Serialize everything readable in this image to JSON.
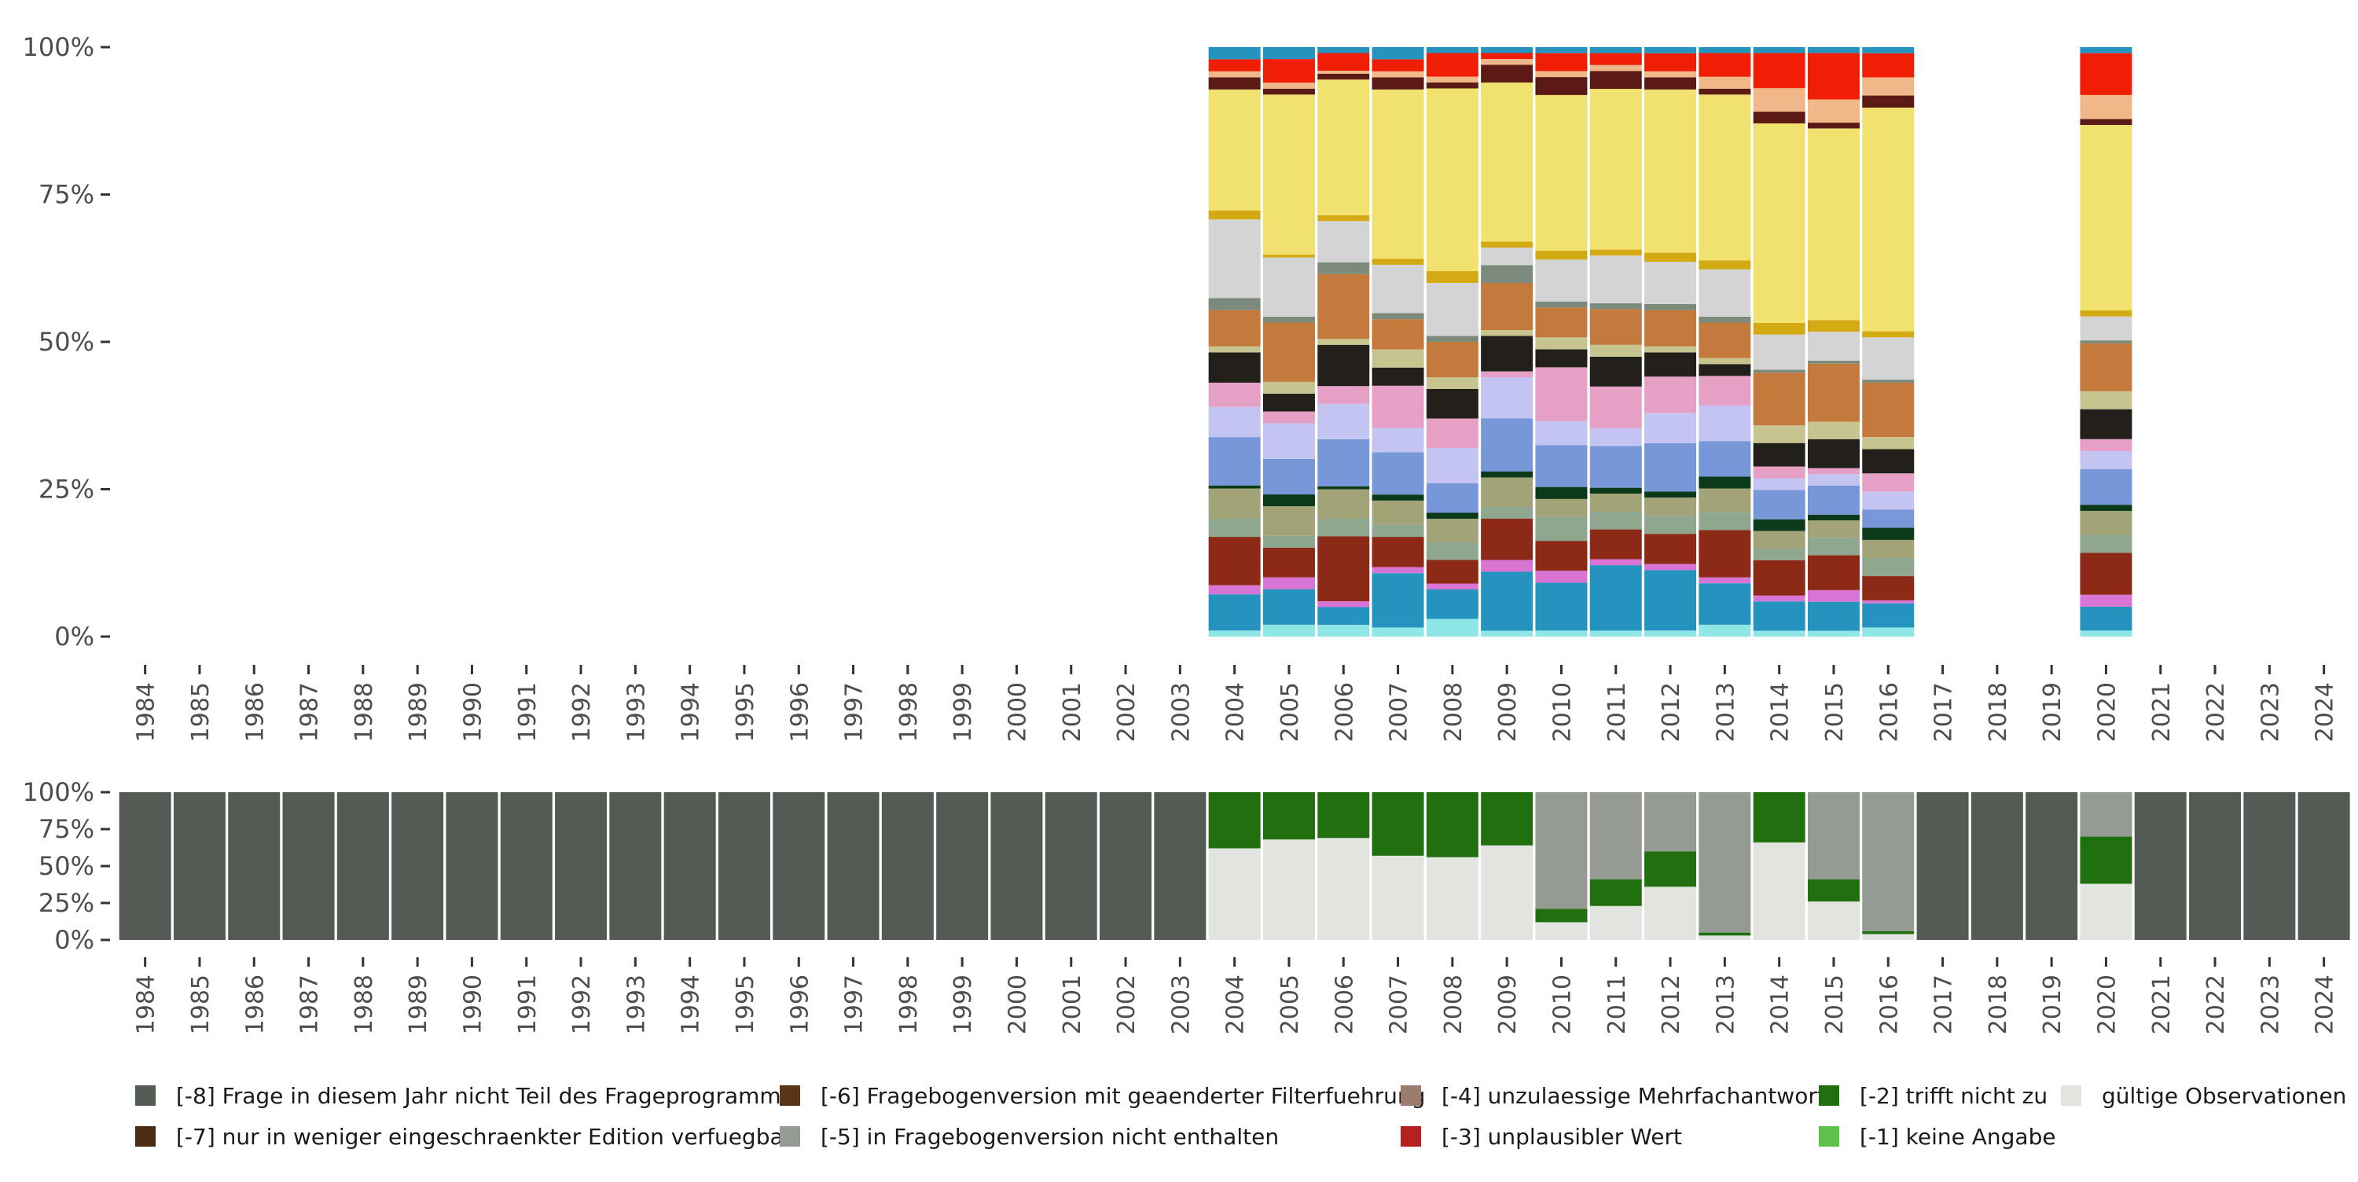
{
  "chart_data": [
    {
      "type": "bar",
      "subtype": "stacked-100-percent",
      "description_scope": "Top panel: distribution of valid answer categories per survey year",
      "categories": [
        "1984",
        "1985",
        "1986",
        "1987",
        "1988",
        "1989",
        "1990",
        "1991",
        "1992",
        "1993",
        "1994",
        "1995",
        "1996",
        "1997",
        "1998",
        "1999",
        "2000",
        "2001",
        "2002",
        "2003",
        "2004",
        "2005",
        "2006",
        "2007",
        "2008",
        "2009",
        "2010",
        "2011",
        "2012",
        "2013",
        "2014",
        "2015",
        "2016",
        "2017",
        "2018",
        "2019",
        "2020",
        "2021",
        "2022",
        "2023",
        "2024"
      ],
      "years_with_data": [
        "2004",
        "2005",
        "2006",
        "2007",
        "2008",
        "2009",
        "2010",
        "2011",
        "2012",
        "2013",
        "2014",
        "2015",
        "2016",
        "2020"
      ],
      "ylim": [
        0,
        100
      ],
      "yticks": [
        "0%",
        "25%",
        "50%",
        "75%",
        "100%"
      ],
      "segment_colors": [
        "#8fe6e6",
        "#2494bf",
        "#d774d4",
        "#8c2a17",
        "#8fa68f",
        "#a3a378",
        "#0b3a1a",
        "#7797d8",
        "#c4c4f2",
        "#e6a0c6",
        "#231f1a",
        "#c8c48f",
        "#c47a3c",
        "#7c8a7c",
        "#d4d4d4",
        "#d4aa14",
        "#f1e16e",
        "#5c1a14",
        "#f0b888",
        "#f01e05",
        "#2494bf"
      ],
      "series_note": "Each bar stacks many small answer categories; values below are segment shares in percent from bottom to top.",
      "stacks": {
        "2004": [
          1,
          6,
          1.5,
          8,
          3,
          5,
          0.5,
          8,
          5,
          4,
          5,
          1,
          6,
          2,
          13,
          1.5,
          20,
          2,
          1,
          2,
          2
        ],
        "2005": [
          2,
          6,
          2,
          5,
          2,
          5,
          2,
          6,
          6,
          2,
          3,
          2,
          10,
          1,
          10,
          0.5,
          27,
          1,
          1,
          4,
          2
        ],
        "2006": [
          2,
          3,
          1,
          11,
          3,
          5,
          0.5,
          8,
          6,
          3,
          7,
          1,
          11,
          2,
          7,
          1,
          23,
          1,
          0.5,
          3,
          1
        ],
        "2007": [
          1.5,
          9,
          1,
          5,
          2,
          4,
          1,
          7,
          4,
          7,
          3,
          3,
          5,
          1,
          8,
          1,
          28,
          2,
          1,
          2,
          2
        ],
        "2008": [
          3,
          5,
          1,
          4,
          3,
          4,
          1,
          5,
          6,
          5,
          5,
          2,
          6,
          1,
          9,
          2,
          31,
          1,
          1,
          4,
          1
        ],
        "2009": [
          1,
          10,
          2,
          7,
          2,
          5,
          1,
          9,
          7,
          1,
          6,
          1,
          8,
          3,
          3,
          1,
          27,
          3,
          1,
          1,
          1
        ],
        "2010": [
          1,
          8,
          2,
          5,
          4,
          3,
          2,
          7,
          4,
          9,
          3,
          2,
          5,
          1,
          7,
          1.5,
          26,
          3,
          1,
          3,
          1
        ],
        "2011": [
          1,
          11,
          1,
          5,
          3,
          3,
          1,
          7,
          3,
          7,
          5,
          2,
          6,
          1,
          8,
          1,
          27,
          3,
          1,
          2,
          1
        ],
        "2012": [
          1,
          10,
          1,
          5,
          3,
          3,
          1,
          8,
          5,
          6,
          4,
          1,
          6,
          1,
          7,
          1.5,
          27,
          2,
          1,
          3,
          1
        ],
        "2013": [
          2,
          7,
          1,
          8,
          3,
          4,
          2,
          6,
          6,
          5,
          2,
          1,
          6,
          1,
          8,
          1.5,
          28,
          1,
          2,
          4,
          1
        ],
        "2014": [
          1,
          5,
          1,
          6,
          2,
          3,
          2,
          5,
          2,
          2,
          4,
          3,
          9,
          0.5,
          6,
          2,
          34,
          2,
          4,
          6,
          1
        ],
        "2015": [
          1,
          5,
          2,
          6,
          3,
          3,
          1,
          5,
          2,
          1,
          5,
          3,
          10,
          0.5,
          5,
          2,
          33,
          1,
          4,
          8,
          1
        ],
        "2016": [
          1.5,
          4,
          0.5,
          4,
          3,
          3,
          2,
          3,
          3,
          3,
          4,
          2,
          9,
          0.5,
          7,
          1,
          37,
          2,
          3,
          4,
          1
        ],
        "2020": [
          1,
          4,
          2,
          7,
          3,
          4,
          1,
          6,
          3,
          2,
          5,
          3,
          8,
          0.5,
          4,
          1,
          31,
          1,
          4,
          7,
          1
        ]
      }
    },
    {
      "type": "bar",
      "subtype": "stacked-100-percent",
      "description_scope": "Bottom panel: share of missing-value codes vs. valid observations per year",
      "categories": [
        "1984",
        "1985",
        "1986",
        "1987",
        "1988",
        "1989",
        "1990",
        "1991",
        "1992",
        "1993",
        "1994",
        "1995",
        "1996",
        "1997",
        "1998",
        "1999",
        "2000",
        "2001",
        "2002",
        "2003",
        "2004",
        "2005",
        "2006",
        "2007",
        "2008",
        "2009",
        "2010",
        "2011",
        "2012",
        "2013",
        "2014",
        "2015",
        "2016",
        "2017",
        "2018",
        "2019",
        "2020",
        "2021",
        "2022",
        "2023",
        "2024"
      ],
      "ylim": [
        0,
        100
      ],
      "yticks": [
        "0%",
        "25%",
        "50%",
        "75%",
        "100%"
      ],
      "series": [
        {
          "name": "gültige Observationen",
          "color": "#e1e4df",
          "values": [
            0,
            0,
            0,
            0,
            0,
            0,
            0,
            0,
            0,
            0,
            0,
            0,
            0,
            0,
            0,
            0,
            0,
            0,
            0,
            0,
            62,
            68,
            69,
            57,
            56,
            64,
            12,
            23,
            36,
            3,
            66,
            26,
            4,
            0,
            0,
            0,
            38,
            0,
            0,
            0,
            0
          ]
        },
        {
          "name": "[-2] trifft nicht zu",
          "color": "#21700f",
          "values": [
            0,
            0,
            0,
            0,
            0,
            0,
            0,
            0,
            0,
            0,
            0,
            0,
            0,
            0,
            0,
            0,
            0,
            0,
            0,
            0,
            38,
            32,
            31,
            43,
            44,
            36,
            9,
            18,
            24,
            2,
            34,
            15,
            2,
            0,
            0,
            0,
            32,
            0,
            0,
            0,
            0
          ]
        },
        {
          "name": "[-5] in Fragebogenversion nicht enthalten",
          "color": "#959a92",
          "values": [
            0,
            0,
            0,
            0,
            0,
            0,
            0,
            0,
            0,
            0,
            0,
            0,
            0,
            0,
            0,
            0,
            0,
            0,
            0,
            0,
            0,
            0,
            0,
            0,
            0,
            0,
            79,
            59,
            40,
            95,
            0,
            59,
            94,
            0,
            0,
            0,
            30,
            0,
            0,
            0,
            0
          ]
        },
        {
          "name": "[-8] Frage in diesem Jahr nicht Teil des Frageprogramms",
          "color": "#545a54",
          "values": [
            100,
            100,
            100,
            100,
            100,
            100,
            100,
            100,
            100,
            100,
            100,
            100,
            100,
            100,
            100,
            100,
            100,
            100,
            100,
            100,
            0,
            0,
            0,
            0,
            0,
            0,
            0,
            0,
            0,
            0,
            0,
            0,
            0,
            100,
            100,
            100,
            0,
            100,
            100,
            100,
            100
          ]
        }
      ]
    }
  ],
  "legend": {
    "items": [
      {
        "label": "[-8] Frage in diesem Jahr nicht Teil des Frageprogramms",
        "color": "#545a54"
      },
      {
        "label": "[-7] nur in weniger eingeschraenkter Edition verfuegbar",
        "color": "#4a2c15"
      },
      {
        "label": "[-6] Fragebogenversion mit geaenderter Filterfuehrung",
        "color": "#5a3516"
      },
      {
        "label": "[-5] in Fragebogenversion nicht enthalten",
        "color": "#959a92"
      },
      {
        "label": "[-4] unzulaessige Mehrfachantwort",
        "color": "#9a7b6e"
      },
      {
        "label": "[-3] unplausibler Wert",
        "color": "#b52020"
      },
      {
        "label": "[-2] trifft nicht zu",
        "color": "#21700f"
      },
      {
        "label": "[-1] keine Angabe",
        "color": "#5cc24a"
      },
      {
        "label": "gültige Observationen",
        "color": "#e1e4df"
      }
    ]
  }
}
